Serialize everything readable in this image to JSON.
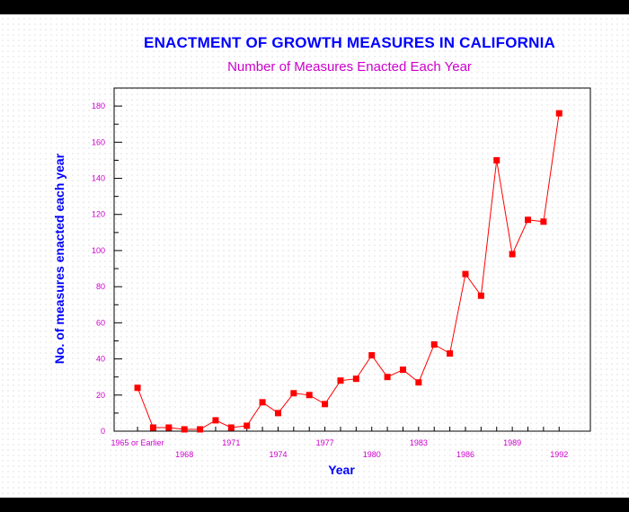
{
  "chart_data": {
    "type": "line",
    "title": "ENACTMENT OF GROWTH MEASURES IN CALIFORNIA",
    "subtitle": "Number of Measures Enacted Each Year",
    "xlabel": "Year",
    "ylabel": "No. of measures enacted each year",
    "x_tick_labels": [
      {
        "x": 0,
        "label": "1965 or Earlier",
        "row": "upper"
      },
      {
        "x": 3,
        "label": "1968",
        "row": "lower"
      },
      {
        "x": 6,
        "label": "1971",
        "row": "upper"
      },
      {
        "x": 9,
        "label": "1974",
        "row": "lower"
      },
      {
        "x": 12,
        "label": "1977",
        "row": "upper"
      },
      {
        "x": 15,
        "label": "1980",
        "row": "lower"
      },
      {
        "x": 18,
        "label": "1983",
        "row": "upper"
      },
      {
        "x": 21,
        "label": "1986",
        "row": "lower"
      },
      {
        "x": 24,
        "label": "1989",
        "row": "upper"
      },
      {
        "x": 27,
        "label": "1992",
        "row": "lower"
      }
    ],
    "yticks": [
      0,
      20,
      40,
      60,
      80,
      100,
      120,
      140,
      160,
      180
    ],
    "ylim": [
      0,
      190
    ],
    "xlim": [
      -1.5,
      29
    ],
    "series": [
      {
        "color": "#ff0000",
        "points": [
          {
            "x": 0,
            "year": "1965 or Earlier",
            "y": 24
          },
          {
            "x": 1,
            "year": "1966",
            "y": 2
          },
          {
            "x": 2,
            "year": "1967",
            "y": 2
          },
          {
            "x": 3,
            "year": "1968",
            "y": 1
          },
          {
            "x": 4,
            "year": "1969",
            "y": 1
          },
          {
            "x": 5,
            "year": "1970",
            "y": 6
          },
          {
            "x": 6,
            "year": "1971",
            "y": 2
          },
          {
            "x": 7,
            "year": "1972",
            "y": 3
          },
          {
            "x": 8,
            "year": "1973",
            "y": 16
          },
          {
            "x": 9,
            "year": "1974",
            "y": 10
          },
          {
            "x": 10,
            "year": "1975",
            "y": 21
          },
          {
            "x": 11,
            "year": "1976",
            "y": 20
          },
          {
            "x": 12,
            "year": "1977",
            "y": 15
          },
          {
            "x": 13,
            "year": "1978",
            "y": 28
          },
          {
            "x": 14,
            "year": "1979",
            "y": 29
          },
          {
            "x": 15,
            "year": "1980",
            "y": 42
          },
          {
            "x": 16,
            "year": "1981",
            "y": 30
          },
          {
            "x": 17,
            "year": "1982",
            "y": 34
          },
          {
            "x": 18,
            "year": "1983",
            "y": 27
          },
          {
            "x": 19,
            "year": "1984",
            "y": 48
          },
          {
            "x": 20,
            "year": "1985",
            "y": 43
          },
          {
            "x": 21,
            "year": "1986",
            "y": 87
          },
          {
            "x": 22,
            "year": "1987",
            "y": 75
          },
          {
            "x": 23,
            "year": "1988",
            "y": 150
          },
          {
            "x": 24,
            "year": "1989",
            "y": 98
          },
          {
            "x": 25,
            "year": "1990",
            "y": 117
          },
          {
            "x": 26,
            "year": "1991",
            "y": 116
          },
          {
            "x": 27,
            "year": "1992",
            "y": 176
          }
        ]
      }
    ],
    "grid": false,
    "legend": "none"
  },
  "colors": {
    "title": "#0000ff",
    "subtitle": "#cc00cc",
    "ticks": "#cc00cc",
    "axis_labels": "#0000ff",
    "series": "#ff0000"
  }
}
